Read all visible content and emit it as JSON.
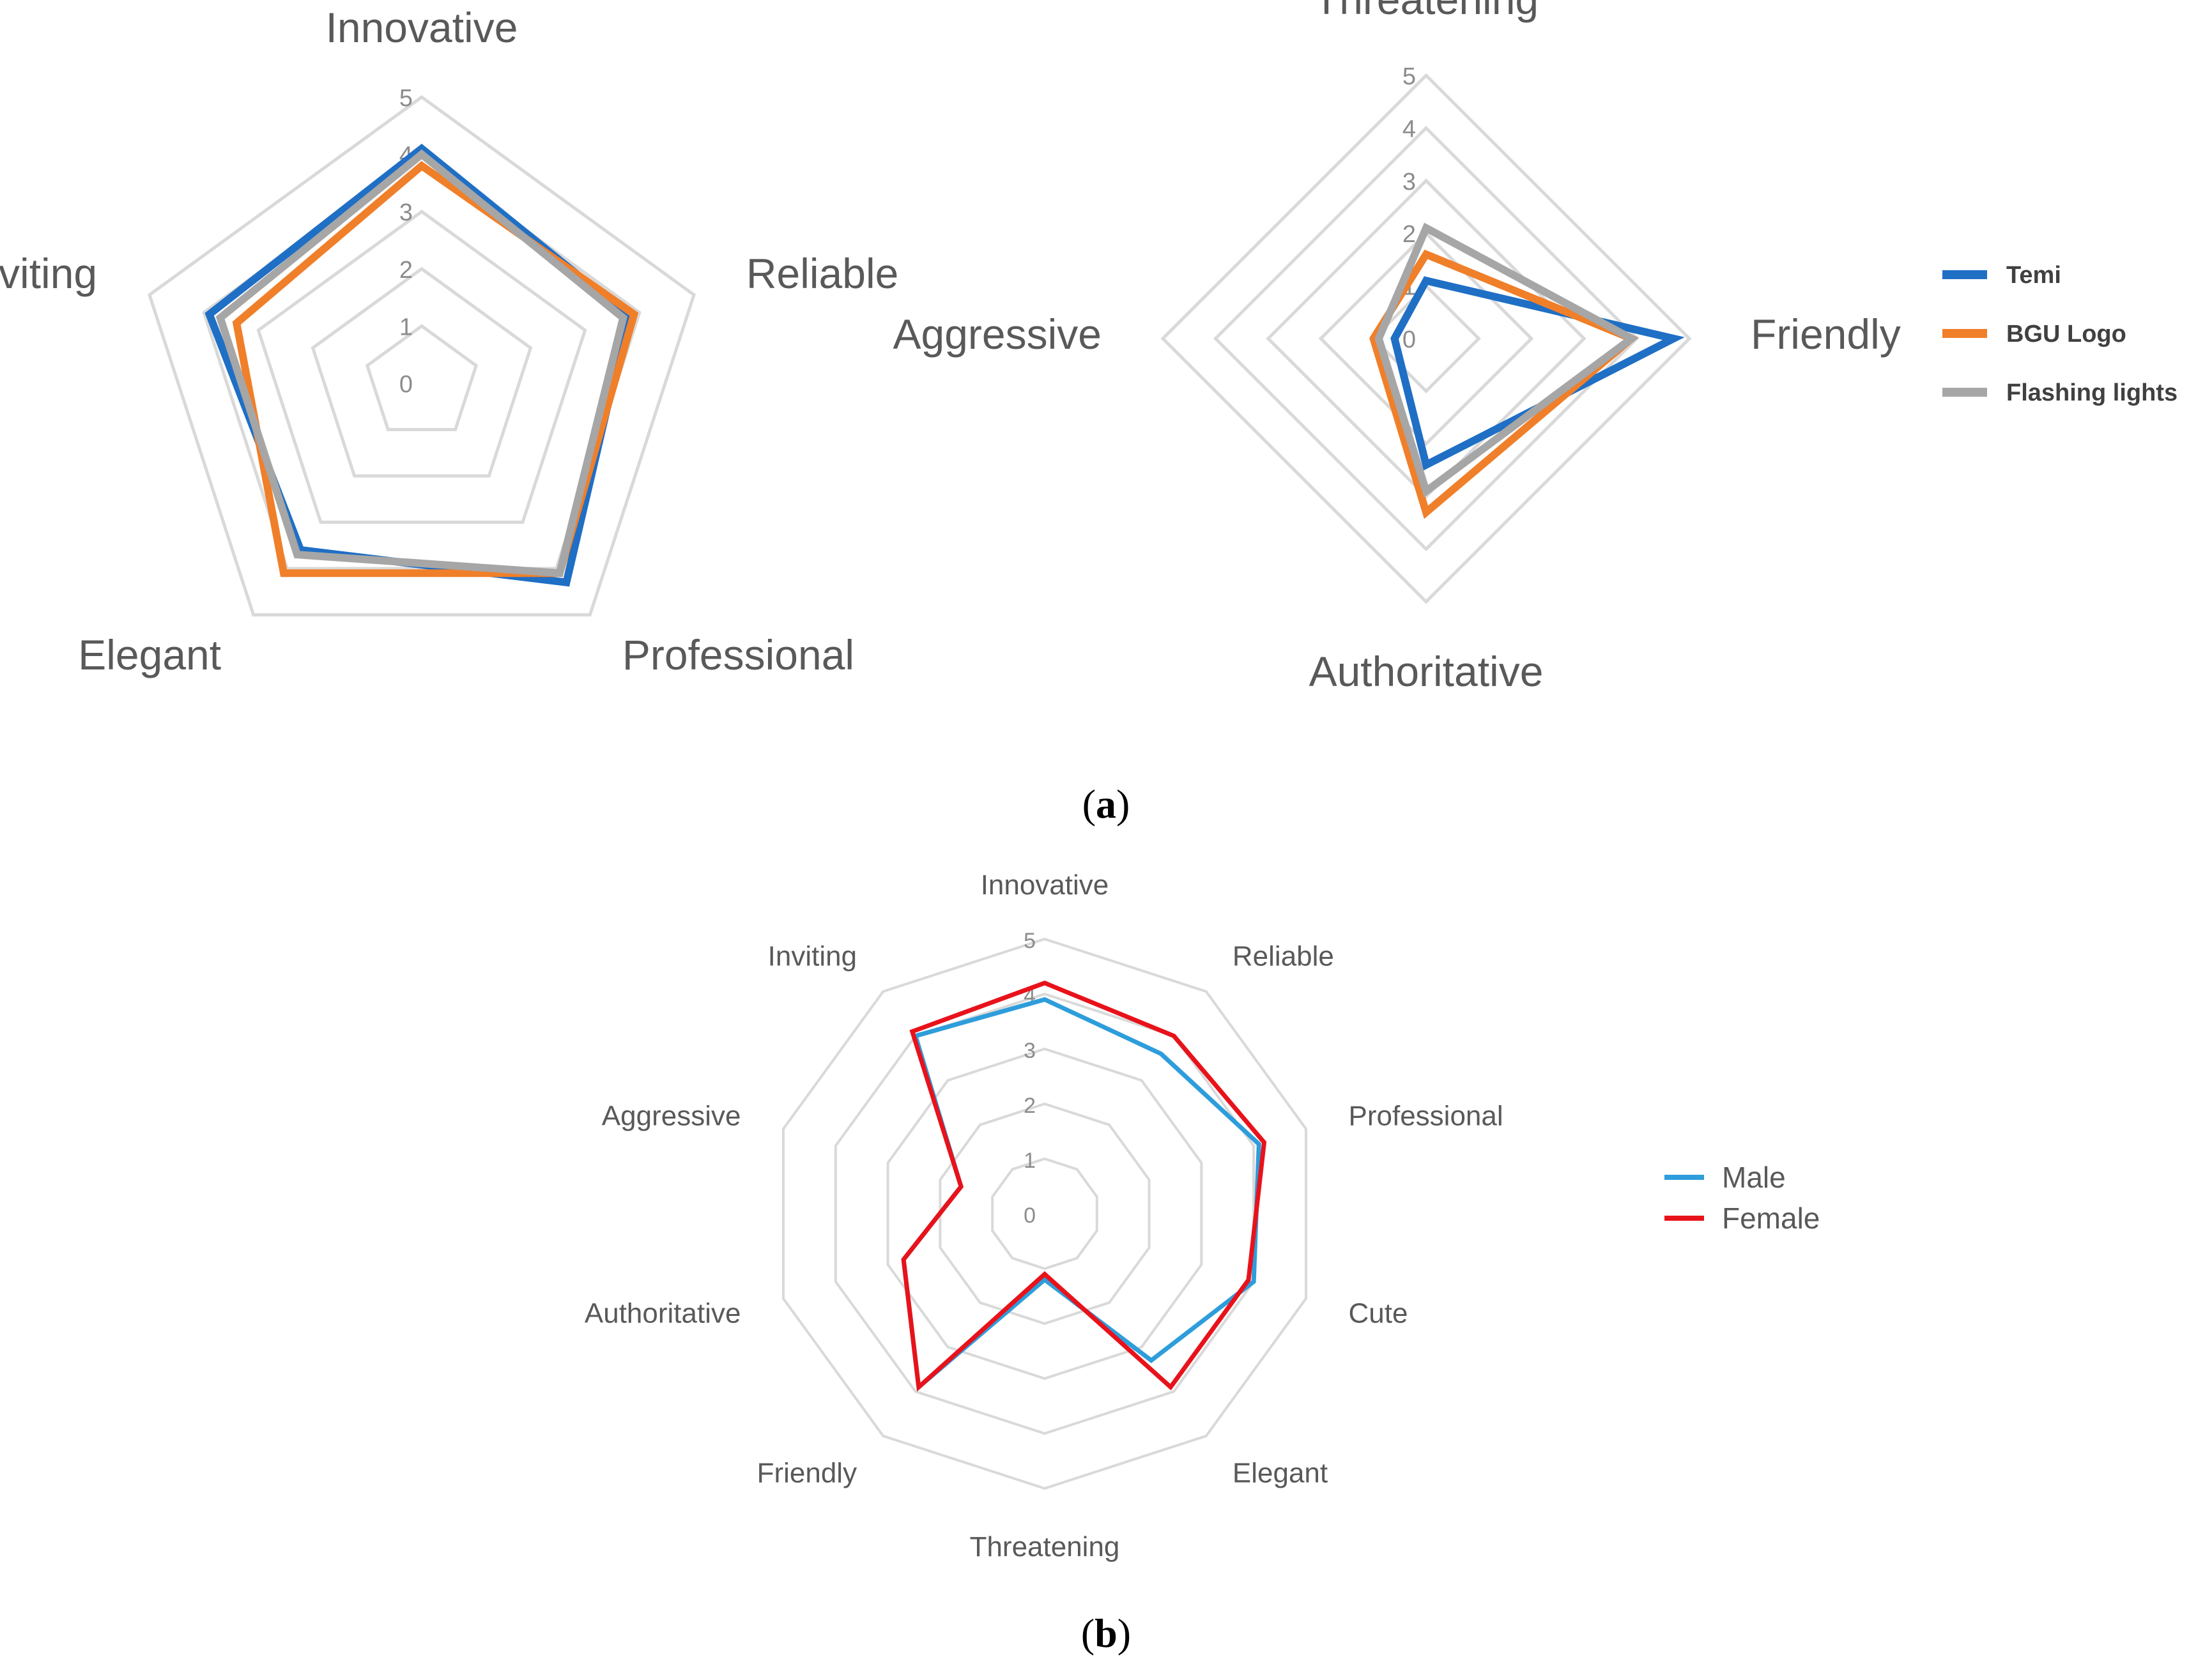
{
  "chart_data": [
    {
      "type": "radar",
      "categories": [
        "Innovative",
        "Reliable",
        "Professional",
        "Elegant",
        "Inviting"
      ],
      "rlim": [
        0,
        5
      ],
      "ticks": [
        "0",
        "1",
        "2",
        "3",
        "4",
        "5"
      ],
      "series": [
        {
          "name": "Temi",
          "values": [
            4.1,
            3.8,
            4.3,
            3.6,
            3.9
          ]
        },
        {
          "name": "BGU Logo",
          "values": [
            3.8,
            3.9,
            4.1,
            4.1,
            3.4
          ]
        },
        {
          "name": "Flashing lights",
          "values": [
            4.0,
            3.7,
            4.1,
            3.7,
            3.7
          ]
        }
      ],
      "colors": [
        "#1f6fc5",
        "#f07f2a",
        "#a6a6a6"
      ],
      "legend_position": "right",
      "grid": true
    },
    {
      "type": "radar",
      "categories": [
        "Threatening",
        "Friendly",
        "Authoritative",
        "Aggressive"
      ],
      "rlim": [
        0,
        5
      ],
      "ticks": [
        "0",
        "1",
        "2",
        "3",
        "4",
        "5"
      ],
      "series": [
        {
          "name": "Temi",
          "values": [
            1.1,
            4.7,
            2.4,
            0.6
          ]
        },
        {
          "name": "BGU Logo",
          "values": [
            1.6,
            3.9,
            3.3,
            1.0
          ]
        },
        {
          "name": "Flashing lights",
          "values": [
            2.1,
            3.9,
            2.9,
            0.9
          ]
        }
      ],
      "colors": [
        "#1f6fc5",
        "#f07f2a",
        "#a6a6a6"
      ],
      "legend": [
        "Temi",
        "BGU Logo",
        "Flashing lights"
      ],
      "legend_position": "right",
      "grid": true
    },
    {
      "type": "radar",
      "categories": [
        "Innovative",
        "Reliable",
        "Professional",
        "Cute",
        "Elegant",
        "Threatening",
        "Friendly",
        "Authoritative",
        "Aggressive",
        "Inviting"
      ],
      "rlim": [
        0,
        5
      ],
      "ticks": [
        "0",
        "1",
        "2",
        "3",
        "4",
        "5"
      ],
      "series": [
        {
          "name": "Male",
          "values": [
            3.9,
            3.6,
            4.1,
            4.0,
            3.3,
            1.2,
            3.9,
            2.7,
            1.6,
            4.0
          ]
        },
        {
          "name": "Female",
          "values": [
            4.2,
            4.0,
            4.2,
            3.9,
            3.9,
            1.1,
            3.9,
            2.7,
            1.6,
            4.1
          ]
        }
      ],
      "colors": [
        "#2e9ddb",
        "#e8121b"
      ],
      "legend": [
        "Male",
        "Female"
      ],
      "legend_position": "right",
      "grid": true
    }
  ],
  "captions": {
    "a": [
      "(",
      "a",
      ")"
    ],
    "b": [
      "(",
      "b",
      ")"
    ]
  }
}
